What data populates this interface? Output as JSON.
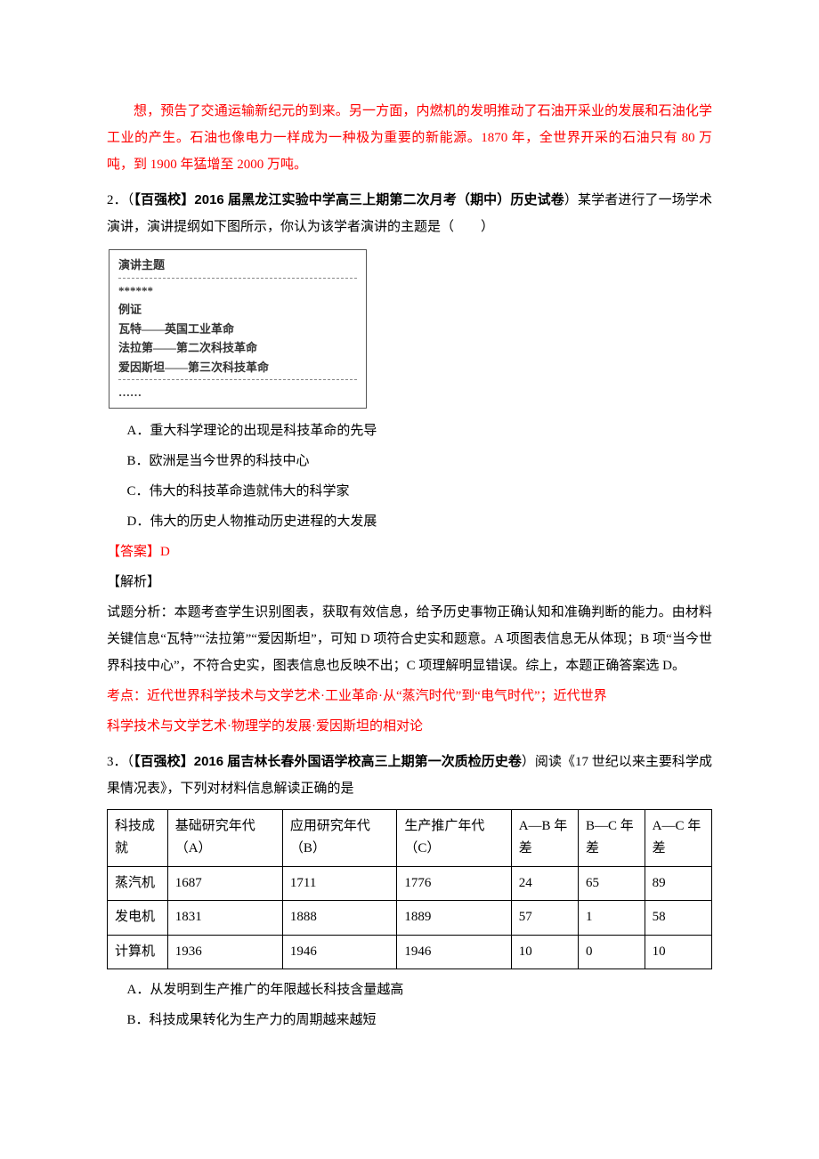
{
  "intro_paragraph": "想，预告了交通运输新纪元的到来。另一方面，内燃机的发明推动了石油开采业的发展和石油化学工业的产生。石油也像电力一样成为一种极为重要的新能源。1870 年，全世界开采的石油只有 80 万吨，到 1900 年猛增至 2000 万吨。",
  "q2": {
    "number": "2．（",
    "source_bold": "【百强校】2016 届黑龙江实验中学高三上期第二次月考（期中）历史试卷",
    "stem_rest": "）某学者进行了一场学术演讲，演讲提纲如下图所示，你认为该学者演讲的主题是（　　）",
    "box": {
      "title": "演讲主题",
      "dots1": "******",
      "ex_label": "例证",
      "line1": "瓦特——英国工业革命",
      "line2": "法拉第——第二次科技革命",
      "line3": "爱因斯坦——第三次科技革命",
      "dots2": "……"
    },
    "options": {
      "A": "A．重大科学理论的出现是科技革命的先导",
      "B": "B．欧洲是当今世界的科技中心",
      "C": "C．伟大的科技革命造就伟大的科学家",
      "D": "D．伟大的历史人物推动历史进程的大发展"
    },
    "answer": "【答案】D",
    "analysis_label": "【解析】",
    "analysis_body": "试题分析：本题考查学生识别图表，获取有效信息，给予历史事物正确认知和准确判断的能力。由材料关键信息“瓦特”“法拉第”“爱因斯坦”，可知 D 项符合史实和题意。A 项图表信息无从体现；B 项“当今世界科技中心”，不符合史实，图表信息也反映不出；C 项理解明显错误。综上，本题正确答案选 D。",
    "kp1": "考点：近代世界科学技术与文学艺术·工业革命·从“蒸汽时代”到“电气时代”；近代世界",
    "kp2": "科学技术与文学艺术·物理学的发展·爱因斯坦的相对论"
  },
  "q3": {
    "number": "3．（",
    "source_bold": "【百强校】2016 届吉林长春外国语学校高三上期第一次质检历史卷",
    "stem_rest": "）阅读《17 世纪以来主要科学成果情况表》，下列对材料信息解读正确的是",
    "table": {
      "headers": [
        "科技成就",
        "基础研究年代（A）",
        "应用研究年代（B）",
        "生产推广年代（C）",
        "A—B\n年差",
        "B—C\n年差",
        "A—C\n年差"
      ],
      "rows": [
        [
          "蒸汽机",
          "1687",
          "1711",
          "1776",
          "24",
          "65",
          "89"
        ],
        [
          "发电机",
          "1831",
          "1888",
          "1889",
          "57",
          "1",
          "58"
        ],
        [
          "计算机",
          "1936",
          "1946",
          "1946",
          "10",
          "0",
          "10"
        ]
      ]
    },
    "options": {
      "A": "A．从发明到生产推广的年限越长科技含量越高",
      "B": "B．科技成果转化为生产力的周期越来越短"
    }
  }
}
